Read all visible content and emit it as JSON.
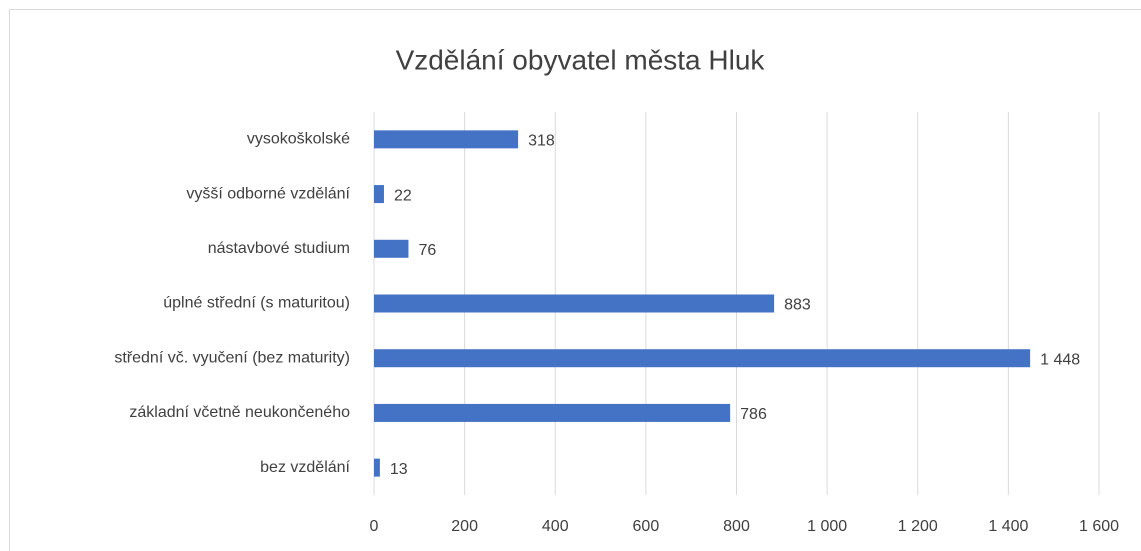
{
  "chart_data": {
    "type": "bar",
    "orientation": "horizontal",
    "title": "Vzdělání obyvatel města Hluk",
    "categories": [
      "vysokoškolské",
      "vyšší odborné vzdělání",
      "nástavbové studium",
      "úplné střední (s maturitou)",
      "střední vč. vyučení (bez maturity)",
      "základní včetně neukončeného",
      "bez vzdělání"
    ],
    "values": [
      318,
      22,
      76,
      883,
      1448,
      786,
      13
    ],
    "value_labels": [
      "318",
      "22",
      "76",
      "883",
      "1 448",
      "786",
      "13"
    ],
    "color": "#4472c4",
    "xlim": [
      0,
      1600
    ],
    "xticks": [
      0,
      200,
      400,
      600,
      800,
      {
        "value": 1000,
        "label": "1 000"
      },
      {
        "value": 1200,
        "label": "1 200"
      },
      {
        "value": 1400,
        "label": "1 400"
      },
      {
        "value": 1600,
        "label": "1 600"
      }
    ],
    "grid": true
  }
}
